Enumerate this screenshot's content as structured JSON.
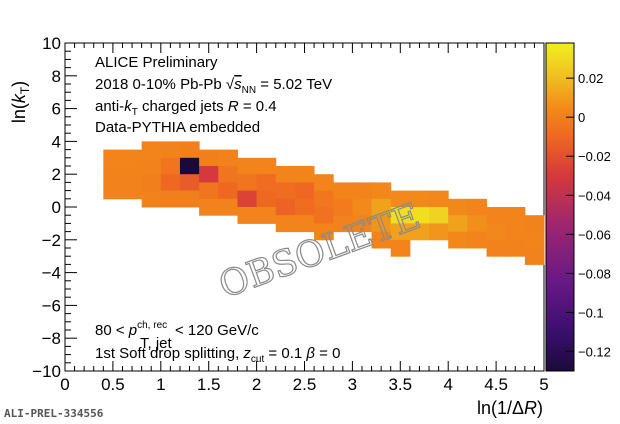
{
  "chart_data": {
    "type": "heatmap",
    "x_axis": {
      "range": [
        0,
        5
      ],
      "ticks": [
        0,
        0.5,
        1,
        1.5,
        2,
        2.5,
        3,
        3.5,
        4,
        4.5,
        5
      ],
      "tick_labels": [
        "0",
        "0.5",
        "1",
        "1.5",
        "2",
        "2.5",
        "3",
        "3.5",
        "4",
        "4.5",
        "5"
      ],
      "label": "ln(1/ΔR)"
    },
    "y_axis": {
      "range": [
        -10,
        10
      ],
      "ticks": [
        -10,
        -8,
        -6,
        -4,
        -2,
        0,
        2,
        4,
        6,
        8,
        10
      ],
      "tick_labels": [
        "−10",
        "−8",
        "−6",
        "−4",
        "−2",
        "0",
        "2",
        "4",
        "6",
        "8",
        "10"
      ],
      "label": "ln(kT)"
    },
    "colorbar": {
      "range": [
        -0.13,
        0.038
      ],
      "ticks": [
        0.02,
        0,
        -0.02,
        -0.04,
        -0.06,
        -0.08,
        -0.1,
        -0.12
      ],
      "tick_labels": [
        "0.02",
        "0",
        "−0.02",
        "−0.04",
        "−0.06",
        "−0.08",
        "−0.1",
        "−0.12"
      ]
    },
    "bins": [
      [
        0.4,
        2.5,
        3.5,
        0.002
      ],
      [
        0.4,
        1.5,
        2.5,
        0.001
      ],
      [
        0.4,
        0.5,
        1.5,
        0.001
      ],
      [
        0.6,
        2.5,
        3.5,
        0.002
      ],
      [
        0.6,
        1.5,
        2.5,
        0.001
      ],
      [
        0.6,
        0.5,
        1.5,
        0.001
      ],
      [
        0.8,
        3.0,
        4.0,
        0.002
      ],
      [
        0.8,
        2.0,
        3.0,
        0.001
      ],
      [
        0.8,
        1.0,
        2.0,
        0.0
      ],
      [
        0.8,
        0.0,
        1.0,
        0.001
      ],
      [
        1.0,
        3.0,
        4.0,
        0.001
      ],
      [
        1.0,
        2.0,
        3.0,
        -0.005
      ],
      [
        1.0,
        1.0,
        2.0,
        -0.01
      ],
      [
        1.0,
        0.0,
        1.0,
        0.0
      ],
      [
        1.2,
        3.0,
        4.0,
        0.0
      ],
      [
        1.2,
        2.0,
        3.0,
        -0.13
      ],
      [
        1.2,
        1.0,
        2.0,
        -0.015
      ],
      [
        1.2,
        0.0,
        1.0,
        0.0
      ],
      [
        1.4,
        2.5,
        3.5,
        0.0
      ],
      [
        1.4,
        1.5,
        2.5,
        -0.03
      ],
      [
        1.4,
        0.5,
        1.5,
        -0.005
      ],
      [
        1.4,
        -0.5,
        0.5,
        0.001
      ],
      [
        1.6,
        2.5,
        3.5,
        0.001
      ],
      [
        1.6,
        1.5,
        2.5,
        -0.005
      ],
      [
        1.6,
        0.5,
        1.5,
        -0.01
      ],
      [
        1.6,
        -0.5,
        0.5,
        0.001
      ],
      [
        1.8,
        2.0,
        3.0,
        0.002
      ],
      [
        1.8,
        1.0,
        2.0,
        -0.005
      ],
      [
        1.8,
        0.0,
        1.0,
        -0.025
      ],
      [
        1.8,
        -1.0,
        0.0,
        0.002
      ],
      [
        2.0,
        2.0,
        3.0,
        0.002
      ],
      [
        2.0,
        1.0,
        2.0,
        -0.008
      ],
      [
        2.0,
        0.0,
        1.0,
        -0.01
      ],
      [
        2.0,
        -1.0,
        0.0,
        0.002
      ],
      [
        2.2,
        1.5,
        2.5,
        0.002
      ],
      [
        2.2,
        0.5,
        1.5,
        -0.008
      ],
      [
        2.2,
        -0.5,
        0.5,
        -0.012
      ],
      [
        2.2,
        -1.5,
        -0.5,
        0.002
      ],
      [
        2.4,
        1.5,
        2.5,
        0.002
      ],
      [
        2.4,
        0.5,
        1.5,
        -0.01
      ],
      [
        2.4,
        -0.5,
        0.5,
        -0.008
      ],
      [
        2.4,
        -1.5,
        -0.5,
        0.002
      ],
      [
        2.6,
        1.0,
        2.0,
        0.002
      ],
      [
        2.6,
        0.0,
        1.0,
        -0.004
      ],
      [
        2.6,
        -1.0,
        0.0,
        -0.006
      ],
      [
        2.6,
        -2.0,
        -1.0,
        0.002
      ],
      [
        2.8,
        0.5,
        1.5,
        0.002
      ],
      [
        2.8,
        -0.5,
        0.5,
        -0.002
      ],
      [
        2.8,
        -1.5,
        -0.5,
        0.001
      ],
      [
        3.0,
        0.5,
        1.5,
        0.002
      ],
      [
        3.0,
        -0.5,
        0.5,
        0.004
      ],
      [
        3.0,
        -1.5,
        -0.5,
        0.002
      ],
      [
        3.2,
        0.5,
        1.5,
        0.003
      ],
      [
        3.2,
        -0.5,
        0.5,
        0.012
      ],
      [
        3.2,
        -1.5,
        -0.5,
        0.008
      ],
      [
        3.2,
        -2.5,
        -1.5,
        0.002
      ],
      [
        3.4,
        0.0,
        1.0,
        0.004
      ],
      [
        3.4,
        -1.0,
        0.0,
        0.032
      ],
      [
        3.4,
        -2.0,
        -1.0,
        0.012
      ],
      [
        3.4,
        -3.0,
        -2.0,
        0.002
      ],
      [
        3.6,
        0.0,
        1.0,
        0.004
      ],
      [
        3.6,
        -1.0,
        0.0,
        0.032
      ],
      [
        3.6,
        -2.0,
        -1.0,
        0.012
      ],
      [
        3.8,
        0.0,
        1.0,
        0.003
      ],
      [
        3.8,
        -1.0,
        0.0,
        0.028
      ],
      [
        3.8,
        -2.0,
        -1.0,
        0.008
      ],
      [
        4.0,
        -0.5,
        0.5,
        0.003
      ],
      [
        4.0,
        -1.5,
        -0.5,
        0.012
      ],
      [
        4.0,
        -2.5,
        -1.5,
        0.003
      ],
      [
        4.2,
        -0.5,
        0.5,
        0.002
      ],
      [
        4.2,
        -1.5,
        -0.5,
        0.006
      ],
      [
        4.2,
        -2.5,
        -1.5,
        0.002
      ],
      [
        4.4,
        -1.0,
        0.0,
        0.002
      ],
      [
        4.4,
        -2.0,
        -1.0,
        0.003
      ],
      [
        4.4,
        -3.0,
        -2.0,
        0.001
      ],
      [
        4.6,
        -1.0,
        0.0,
        0.002
      ],
      [
        4.6,
        -2.0,
        -1.0,
        0.002
      ],
      [
        4.6,
        -3.0,
        -2.0,
        0.001
      ],
      [
        4.8,
        -1.5,
        -0.5,
        0.001
      ],
      [
        4.8,
        -2.5,
        -1.5,
        0.002
      ],
      [
        4.8,
        -3.5,
        -2.5,
        0.001
      ]
    ],
    "bin_width_x": 0.2,
    "grid": false,
    "legend": "none"
  },
  "annotations": {
    "line1": "ALICE Preliminary",
    "line2_prefix": "2018 0-10% Pb-Pb ",
    "line2_sqrt": "√",
    "line2_s": "s",
    "line2_sub": "NN",
    "line2_suffix": " = 5.02 TeV",
    "line3_prefix": "anti-",
    "line3_k": "k",
    "line3_sub": "T",
    "line3_mid": " charged jets ",
    "line3_R": "R",
    "line3_suffix": " = 0.4",
    "line4": "Data-PYTHIA embedded",
    "line5_prefix": "80 < ",
    "line5_p": "p",
    "line5_sup": "ch, rec",
    "line5_sub": "T, jet",
    "line5_suffix": " < 120 GeV/c",
    "line6_prefix": "1st Soft drop splitting, ",
    "line6_z": "z",
    "line6_sub": "cut",
    "line6_mid": " = 0.1 ",
    "line6_beta": "β",
    "line6_suffix": " = 0"
  },
  "watermark": "OBSOLETE",
  "preliminary_id": "ALI-PREL-334556",
  "colors": {
    "axis": "#000000",
    "watermark_stroke": "#8a8a8a"
  }
}
